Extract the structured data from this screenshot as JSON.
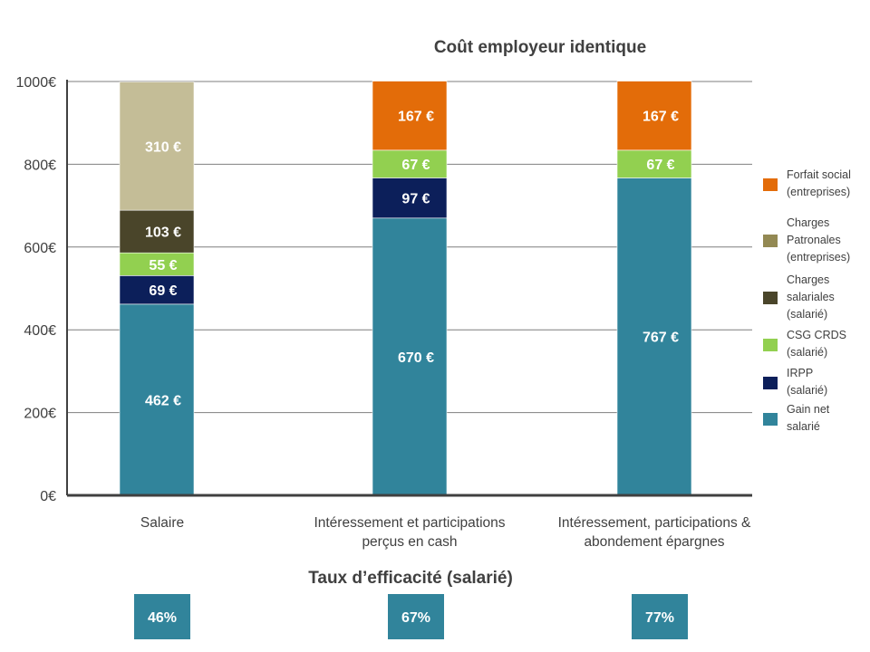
{
  "chart_data": {
    "type": "bar",
    "stacked": true,
    "title": "Coût employeur identique",
    "xlabel": "",
    "ylabel": "",
    "ylim": [
      0,
      1000
    ],
    "yticks": [
      "0€",
      "200€",
      "400€",
      "600€",
      "800€",
      "1000€"
    ],
    "grid": true,
    "legend_position": "right",
    "categories": [
      "Salaire",
      "Intéressement et participations perçus en cash",
      "Intéressement, participations & abondement épargnes"
    ],
    "series": [
      {
        "name": "Gain net salarié",
        "color": "#31849b",
        "values": [
          462,
          670,
          767
        ],
        "labels": [
          "462 €",
          "670 €",
          "767 €"
        ]
      },
      {
        "name": "IRPP (salarié)",
        "color": "#0c1f5a",
        "values": [
          69,
          97,
          null
        ],
        "labels": [
          "69 €",
          "97 €",
          ""
        ]
      },
      {
        "name": "CSG CRDS (salarié)",
        "color": "#92d050",
        "values": [
          55,
          67,
          67
        ],
        "labels": [
          "55 €",
          "67 €",
          "67 €"
        ]
      },
      {
        "name": "Charges salariales (salarié)",
        "color": "#4a452a",
        "values": [
          103,
          null,
          null
        ],
        "labels": [
          "103 €",
          "",
          ""
        ]
      },
      {
        "name": "Charges Patronales (entreprises)",
        "color": "#c4bd97",
        "values": [
          310,
          null,
          null
        ],
        "labels": [
          "310 €",
          "",
          ""
        ]
      },
      {
        "name": "Forfait social (entreprises)",
        "color": "#e36c09",
        "values": [
          null,
          167,
          167
        ],
        "labels": [
          "",
          "167 €",
          "167 €"
        ]
      }
    ],
    "legend": [
      {
        "lines": [
          "Forfait social",
          "(entreprises)"
        ],
        "color": "#e36c09"
      },
      {
        "lines": [
          "Charges",
          "Patronales",
          "(entreprises)"
        ],
        "color": "#938953"
      },
      {
        "lines": [
          "Charges",
          "salariales",
          "(salarié)"
        ],
        "color": "#4a452a"
      },
      {
        "lines": [
          "CSG CRDS",
          "(salarié)"
        ],
        "color": "#92d050"
      },
      {
        "lines": [
          "IRPP",
          "(salarié)"
        ],
        "color": "#0c1f5a"
      },
      {
        "lines": [
          "Gain net",
          "salarié"
        ],
        "color": "#31849b"
      }
    ],
    "category_lines": [
      [
        "Salaire"
      ],
      [
        "Intéressement et participations",
        "perçus en cash"
      ],
      [
        "Intéressement, participations &",
        "abondement épargnes"
      ]
    ]
  },
  "efficiency": {
    "title": "Taux d’efficacité (salarié)",
    "values": [
      "46%",
      "67%",
      "77%"
    ],
    "color": "#31849b"
  }
}
